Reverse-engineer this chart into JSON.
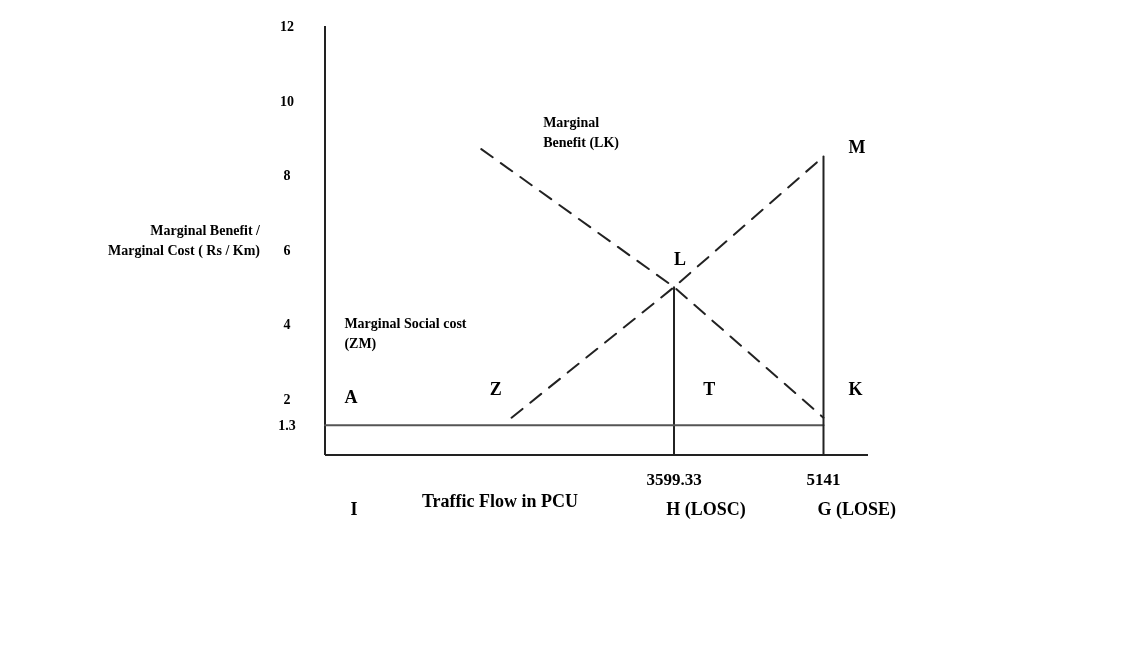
{
  "chart_data": {
    "type": "line",
    "xlabel": "Traffic Flow in PCU",
    "ylabel": "Marginal Benefit / Marginal Cost ( Rs / Km)",
    "xlim": [
      0,
      5600
    ],
    "ylim": [
      0.5,
      12
    ],
    "xticks": [
      3599.33,
      5141
    ],
    "yticks": [
      1.3,
      2,
      4,
      6,
      8,
      10,
      12
    ],
    "grid": false,
    "marker": "none",
    "series": [
      {
        "color": "#222222",
        "line_style": "dashed",
        "x": [
          1612,
          3599.33,
          5141
        ],
        "values": [
          8.7,
          5.0,
          1.5
        ]
      },
      {
        "color": "#222222",
        "line_style": "dashed",
        "x": [
          1924,
          3599.33,
          5141
        ],
        "values": [
          1.5,
          5.0,
          8.5
        ]
      },
      {
        "color": "#222222",
        "line_style": "solid",
        "x": [
          3599.33,
          3599.33
        ],
        "values": [
          0.5,
          5.0
        ]
      },
      {
        "color": "#555555",
        "line_style": "solid",
        "x": [
          0,
          5141
        ],
        "values": [
          1.3,
          1.3
        ]
      },
      {
        "color": "#222222",
        "line_style": "solid",
        "x": [
          5141,
          5141
        ],
        "values": [
          0.5,
          8.5
        ]
      }
    ],
    "annotations": [
      "Marginal\nBenefit (LK)",
      "Marginal Social cost\n(ZM)",
      "A",
      "Z",
      "L",
      "T",
      "K",
      "M",
      "I",
      "H   (LOSC)",
      "G (LOSE)"
    ]
  }
}
